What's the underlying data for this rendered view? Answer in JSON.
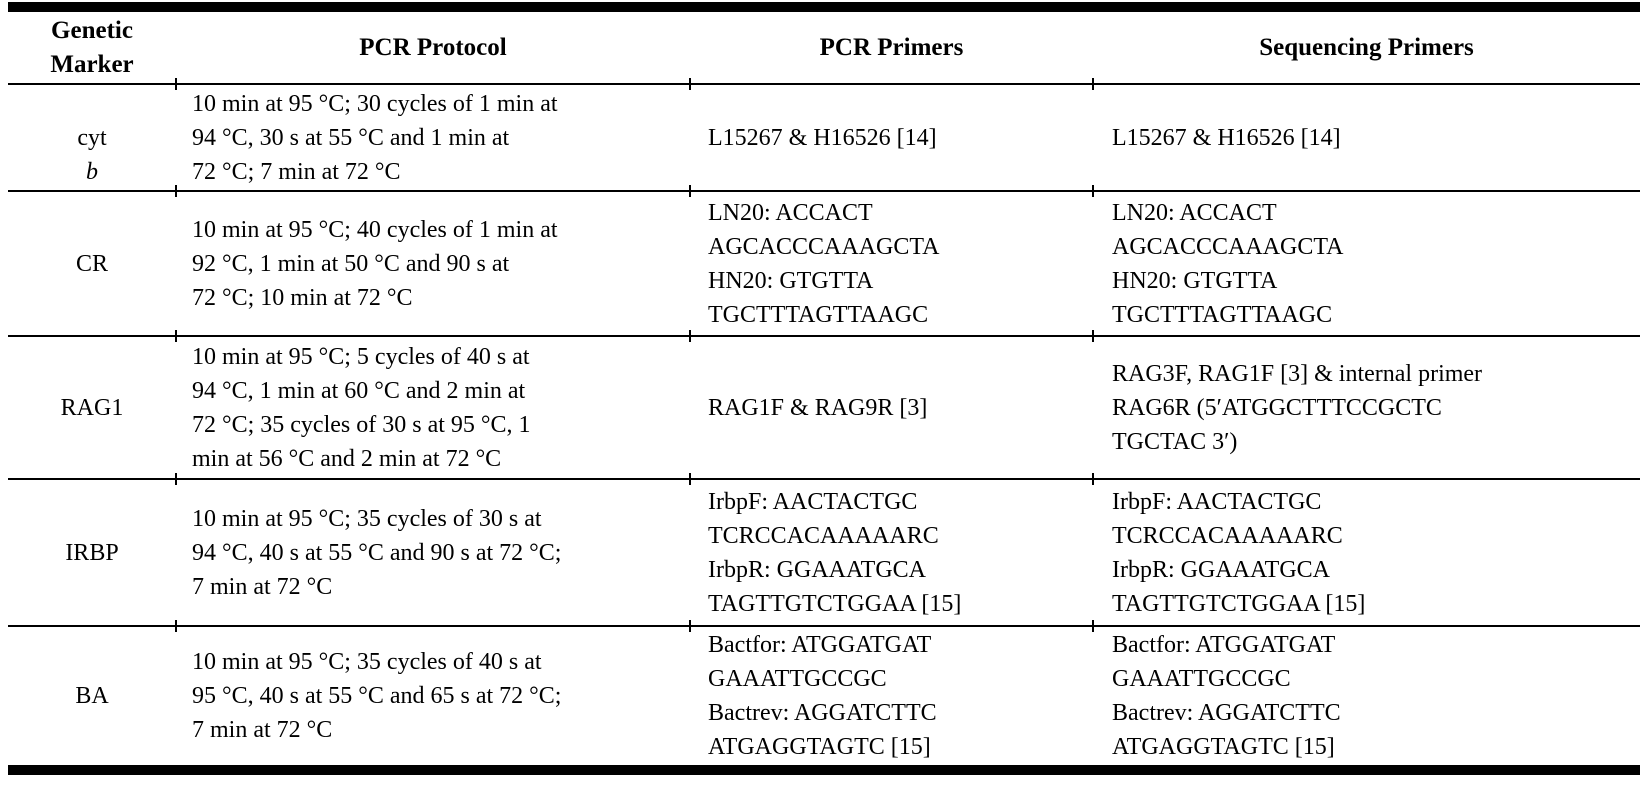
{
  "table": {
    "headers": [
      "Genetic\nMarker",
      "PCR Protocol",
      "PCR Primers",
      "Sequencing Primers"
    ],
    "rows": [
      {
        "marker": "cyt",
        "marker_italic": "b",
        "protocol": "10 min at 95 °C; 30 cycles of 1 min at\n94 °C, 30 s at 55 °C and 1 min at\n72 °C; 7 min at 72 °C",
        "pcr_primers": "L15267 & H16526 [14]",
        "seq_primers": "L15267 & H16526 [14]"
      },
      {
        "marker": "CR",
        "marker_italic": "",
        "protocol": "10 min at 95 °C; 40 cycles of 1 min at\n92 °C, 1 min at 50 °C and 90 s at\n72 °C; 10 min at 72 °C",
        "pcr_primers": "LN20: ACCACT\nAGCACCCAAAGCTA\nHN20: GTGTTA\nTGCTTTAGTTAAGC",
        "seq_primers": "LN20: ACCACT\nAGCACCCAAAGCTA\nHN20: GTGTTA\nTGCTTTAGTTAAGC"
      },
      {
        "marker": "RAG1",
        "marker_italic": "",
        "protocol": "10 min at 95 °C; 5 cycles of 40 s at\n94 °C, 1 min at 60 °C and 2 min at\n72 °C; 35 cycles of 30 s at 95 °C, 1\nmin at 56 °C and 2 min at 72 °C",
        "pcr_primers": "RAG1F & RAG9R [3]",
        "seq_primers": "RAG3F, RAG1F [3] & internal primer\nRAG6R (5′ATGGCTTTCCGCTC\nTGCTAC 3′)"
      },
      {
        "marker": "IRBP",
        "marker_italic": "",
        "protocol": "10 min at 95 °C; 35 cycles of 30 s at\n94 °C, 40 s at 55 °C and 90 s at 72 °C;\n7 min at 72 °C",
        "pcr_primers": "IrbpF: AACTACTGC\nTCRCCACAAAAARC\nIrbpR: GGAAATGCA\nTAGTTGTCTGGAA [15]",
        "seq_primers": "IrbpF: AACTACTGC\nTCRCCACAAAAARC\nIrbpR: GGAAATGCA\nTAGTTGTCTGGAA [15]"
      },
      {
        "marker": "BA",
        "marker_italic": "",
        "protocol": "10 min at 95 °C; 35 cycles of 40 s at\n95 °C, 40 s at 55 °C and 65 s at 72 °C;\n7 min at 72 °C",
        "pcr_primers": "Bactfor: ATGGATGAT\nGAAATTGCCGC\nBactrev: AGGATCTTC\nATGAGGTAGTC [15]",
        "seq_primers": "Bactfor: ATGGATGAT\nGAAATTGCCGC\nBactrev: AGGATCTTC\nATGAGGTAGTC [15]"
      }
    ]
  },
  "colors": {
    "text": "#000000",
    "background": "#ffffff",
    "rules": "#000000"
  }
}
